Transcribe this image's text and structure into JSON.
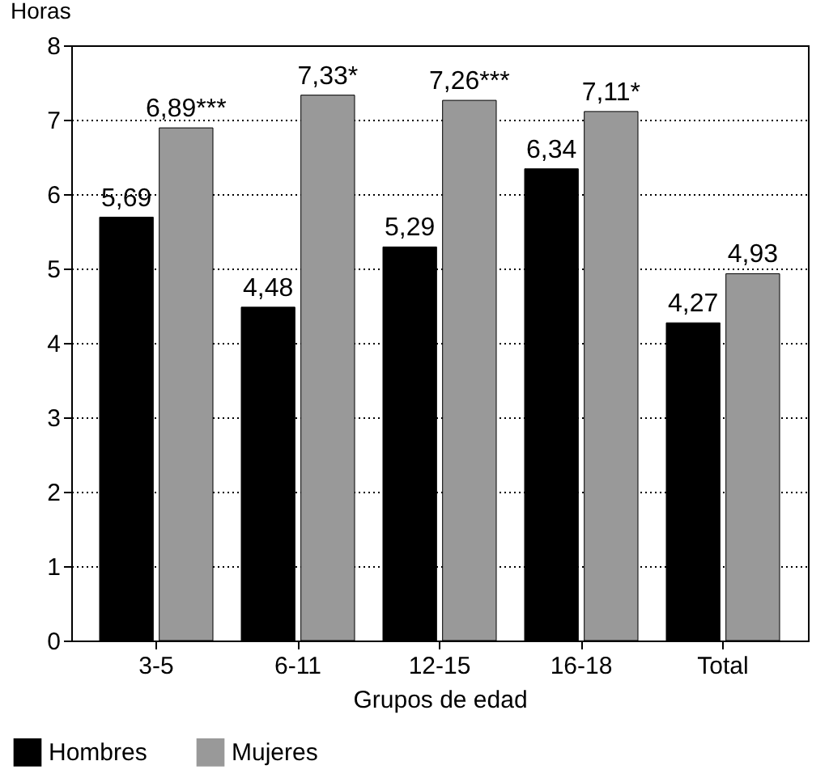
{
  "chart_data": {
    "type": "bar",
    "xlabel": "Grupos de edad",
    "ylabel": "Horas",
    "categories": [
      "3-5",
      "6-11",
      "12-15",
      "16-18",
      "Total"
    ],
    "series": [
      {
        "name": "Hombres",
        "color": "#000000",
        "values": [
          5.69,
          4.48,
          5.29,
          6.34,
          4.27
        ],
        "value_labels": [
          "5,69",
          "4,48",
          "5,29",
          "6,34",
          "4,27"
        ]
      },
      {
        "name": "Mujeres",
        "color": "#999999",
        "values": [
          6.89,
          7.33,
          7.26,
          7.11,
          4.93
        ],
        "value_labels": [
          "6,89***",
          "7,33*",
          "7,26***",
          "7,11*",
          "4,93"
        ]
      }
    ],
    "ylim": [
      0,
      8
    ],
    "yticks": [
      0,
      1,
      2,
      3,
      4,
      5,
      6,
      7,
      8
    ],
    "grid": "y",
    "legend": "bottom left"
  }
}
